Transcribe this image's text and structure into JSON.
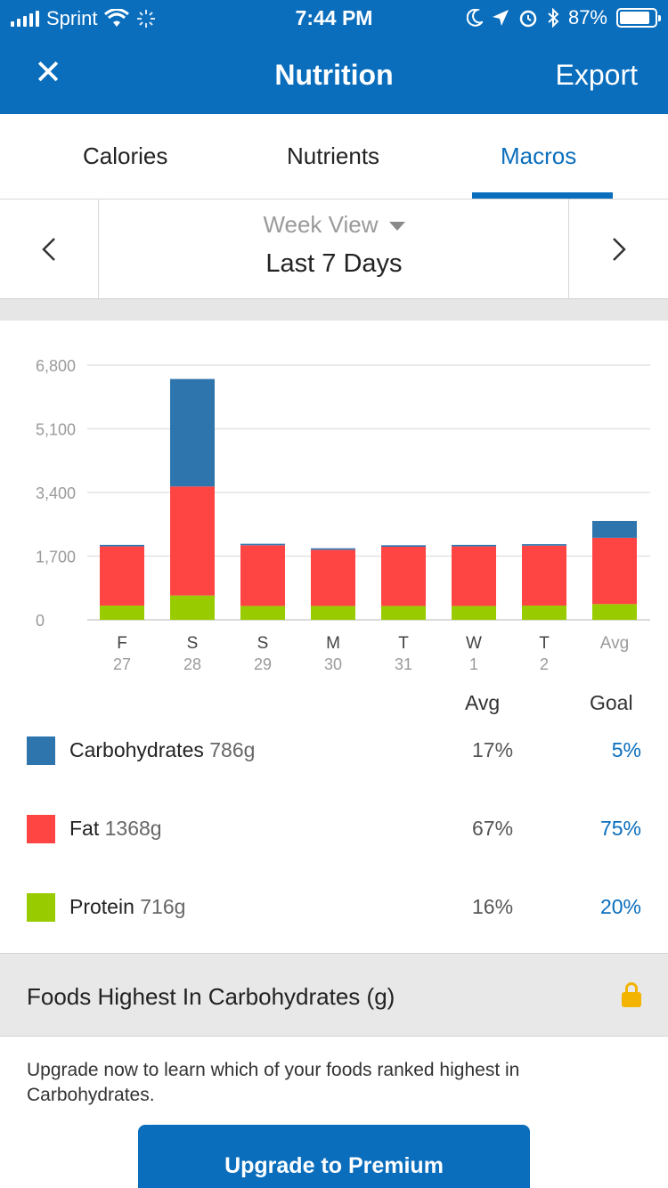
{
  "status_bar": {
    "carrier": "Sprint",
    "time": "7:44 PM",
    "battery": "87%",
    "battery_level": 0.87
  },
  "nav": {
    "title": "Nutrition",
    "export_label": "Export",
    "close_icon": "close-icon"
  },
  "tabs": [
    {
      "label": "Calories",
      "active": false
    },
    {
      "label": "Nutrients",
      "active": false
    },
    {
      "label": "Macros",
      "active": true
    }
  ],
  "week_selector": {
    "view_label": "Week View",
    "range_label": "Last 7 Days"
  },
  "chart_data": {
    "type": "bar",
    "stacked": true,
    "y_ticks": [
      "6,800",
      "5,100",
      "3,400",
      "1,700",
      "0"
    ],
    "ylim": [
      0,
      6800
    ],
    "categories": [
      "F",
      "S",
      "S",
      "M",
      "T",
      "W",
      "T",
      "Avg"
    ],
    "day_numbers": [
      "27",
      "28",
      "29",
      "30",
      "31",
      "1",
      "2",
      ""
    ],
    "series": [
      {
        "name": "Protein",
        "color": "#99cc00",
        "values": [
          380,
          650,
          370,
          370,
          370,
          370,
          380,
          420
        ]
      },
      {
        "name": "Fat",
        "color": "#ff4444",
        "values": [
          1580,
          2910,
          1620,
          1500,
          1580,
          1590,
          1600,
          1770
        ]
      },
      {
        "name": "Carbohydrates",
        "color": "#2f75ad",
        "values": [
          40,
          2870,
          40,
          40,
          40,
          40,
          40,
          450
        ]
      }
    ],
    "grid": true
  },
  "legend": {
    "avg_header": "Avg",
    "goal_header": "Goal",
    "rows": [
      {
        "name": "Carbohydrates",
        "grams": "786g",
        "avg": "17%",
        "goal": "5%",
        "color": "#2f75ad"
      },
      {
        "name": "Fat",
        "grams": "1368g",
        "avg": "67%",
        "goal": "75%",
        "color": "#ff4444"
      },
      {
        "name": "Protein",
        "grams": "716g",
        "avg": "16%",
        "goal": "20%",
        "color": "#99cc00"
      }
    ]
  },
  "foods": {
    "title": "Foods Highest In Carbohydrates (g)",
    "upgrade_text": "Upgrade now to learn which of your foods ranked highest in Carbohydrates.",
    "upgrade_button": "Upgrade to Premium"
  }
}
